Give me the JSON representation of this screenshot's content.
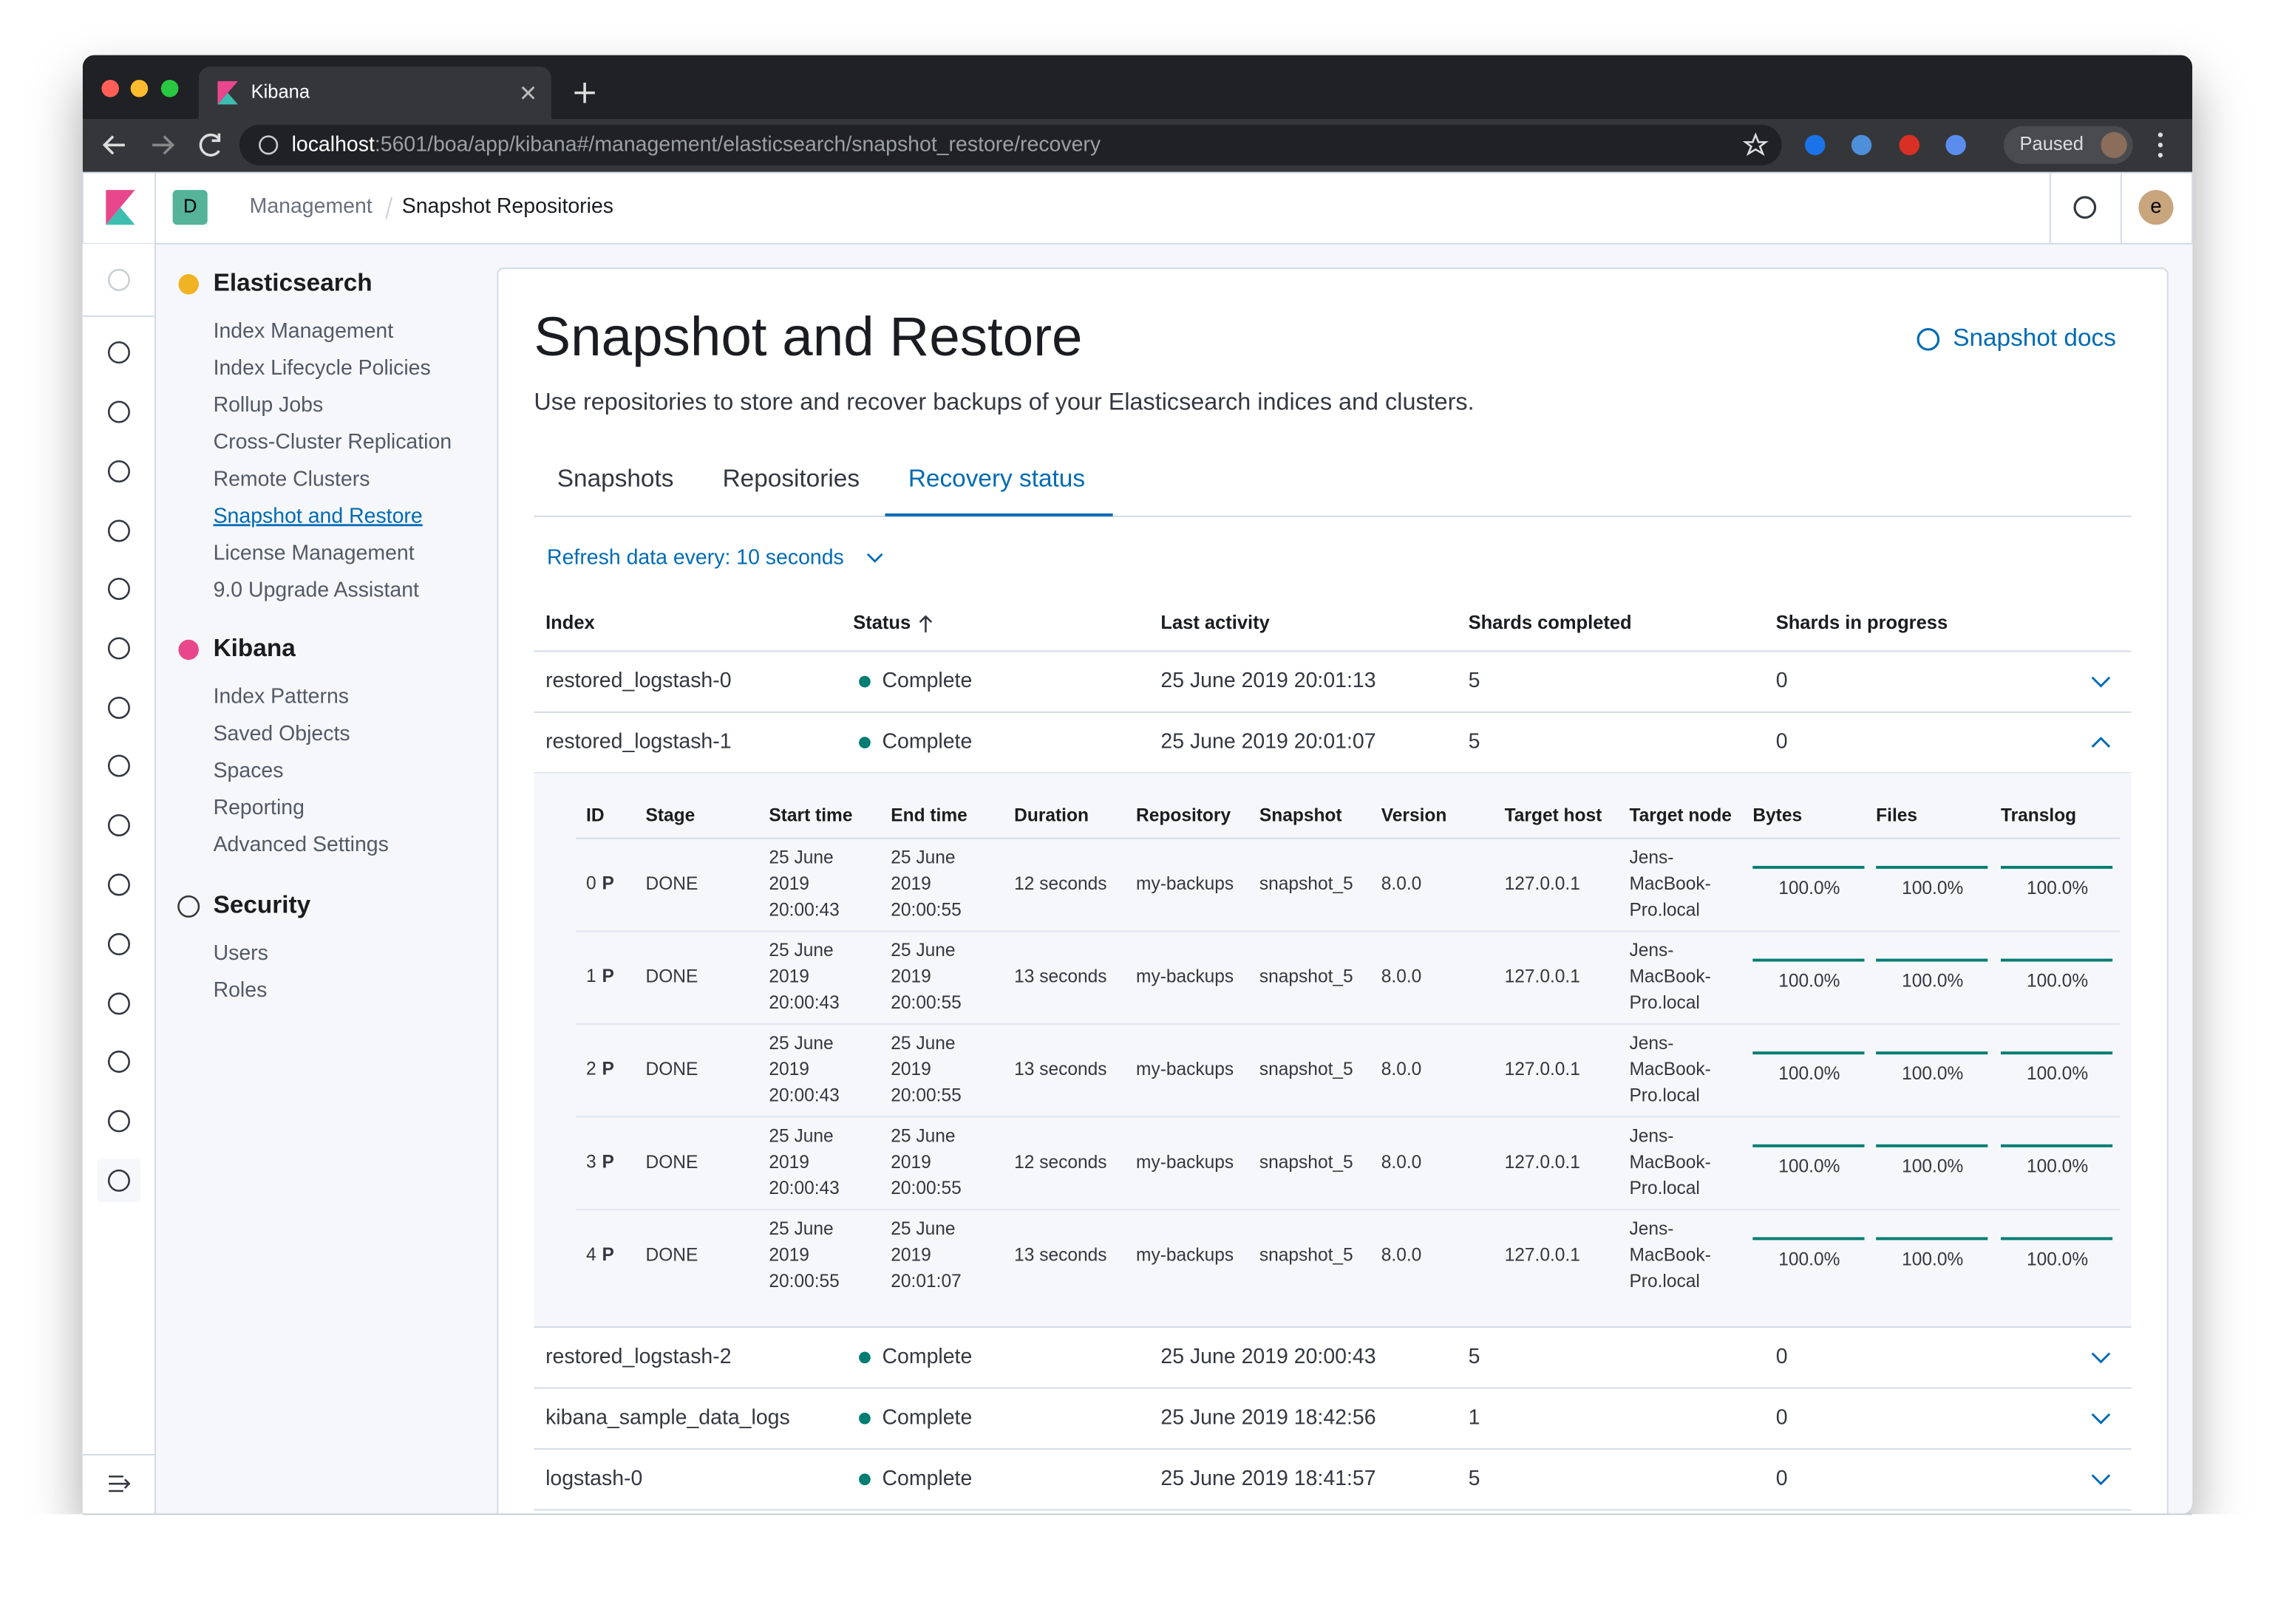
{
  "browser": {
    "tab_title": "Kibana",
    "url_host": "localhost",
    "url_path": ":5601/boa/app/kibana#/management/elasticsearch/snapshot_restore/recovery",
    "profile": "Paused"
  },
  "header": {
    "space": "D",
    "breadcrumbs": [
      "Management",
      "Snapshot Repositories"
    ],
    "avatar": "e"
  },
  "sidebar": {
    "sections": [
      {
        "title": "Elasticsearch",
        "items": [
          {
            "label": "Index Management"
          },
          {
            "label": "Index Lifecycle Policies"
          },
          {
            "label": "Rollup Jobs"
          },
          {
            "label": "Cross-Cluster Replication"
          },
          {
            "label": "Remote Clusters"
          },
          {
            "label": "Snapshot and Restore",
            "active": true
          },
          {
            "label": "License Management"
          },
          {
            "label": "9.0 Upgrade Assistant"
          }
        ]
      },
      {
        "title": "Kibana",
        "items": [
          {
            "label": "Index Patterns"
          },
          {
            "label": "Saved Objects"
          },
          {
            "label": "Spaces"
          },
          {
            "label": "Reporting"
          },
          {
            "label": "Advanced Settings"
          }
        ]
      },
      {
        "title": "Security",
        "items": [
          {
            "label": "Users"
          },
          {
            "label": "Roles"
          }
        ]
      }
    ]
  },
  "page": {
    "title": "Snapshot and Restore",
    "description": "Use repositories to store and recover backups of your Elasticsearch indices and clusters.",
    "docs_link": "Snapshot docs",
    "tabs": [
      {
        "label": "Snapshots"
      },
      {
        "label": "Repositories"
      },
      {
        "label": "Recovery status",
        "selected": true
      }
    ],
    "refresh": "Refresh data every: 10 seconds"
  },
  "recovery_table": {
    "columns": [
      "Index",
      "Status",
      "Last activity",
      "Shards completed",
      "Shards in progress"
    ],
    "detail_columns": [
      "ID",
      "Stage",
      "Start time",
      "End time",
      "Duration",
      "Repository",
      "Snapshot",
      "Version",
      "Target host",
      "Target node",
      "Bytes",
      "Files",
      "Translog"
    ],
    "rows": [
      {
        "index": "restored_logstash-0",
        "status": "Complete",
        "last_activity": "25 June 2019 20:01:13",
        "shards_completed": 5,
        "shards_in_progress": 0
      },
      {
        "index": "restored_logstash-1",
        "status": "Complete",
        "last_activity": "25 June 2019 20:01:07",
        "shards_completed": 5,
        "shards_in_progress": 0,
        "expanded": true,
        "shards": [
          {
            "id": 0,
            "primary": "P",
            "stage": "DONE",
            "start_time": [
              "25 June",
              "2019",
              "20:00:43"
            ],
            "end_time": [
              "25 June",
              "2019",
              "20:00:55"
            ],
            "duration": "12 seconds",
            "repository": "my-backups",
            "snapshot": "snapshot_5",
            "version": "8.0.0",
            "target_host": "127.0.0.1",
            "target_node": [
              "Jens-",
              "MacBook-",
              "Pro.local"
            ],
            "bytes": "100.0%",
            "files": "100.0%",
            "translog": "100.0%"
          },
          {
            "id": 1,
            "primary": "P",
            "stage": "DONE",
            "start_time": [
              "25 June",
              "2019",
              "20:00:43"
            ],
            "end_time": [
              "25 June",
              "2019",
              "20:00:55"
            ],
            "duration": "13 seconds",
            "repository": "my-backups",
            "snapshot": "snapshot_5",
            "version": "8.0.0",
            "target_host": "127.0.0.1",
            "target_node": [
              "Jens-",
              "MacBook-",
              "Pro.local"
            ],
            "bytes": "100.0%",
            "files": "100.0%",
            "translog": "100.0%"
          },
          {
            "id": 2,
            "primary": "P",
            "stage": "DONE",
            "start_time": [
              "25 June",
              "2019",
              "20:00:43"
            ],
            "end_time": [
              "25 June",
              "2019",
              "20:00:55"
            ],
            "duration": "13 seconds",
            "repository": "my-backups",
            "snapshot": "snapshot_5",
            "version": "8.0.0",
            "target_host": "127.0.0.1",
            "target_node": [
              "Jens-",
              "MacBook-",
              "Pro.local"
            ],
            "bytes": "100.0%",
            "files": "100.0%",
            "translog": "100.0%"
          },
          {
            "id": 3,
            "primary": "P",
            "stage": "DONE",
            "start_time": [
              "25 June",
              "2019",
              "20:00:43"
            ],
            "end_time": [
              "25 June",
              "2019",
              "20:00:55"
            ],
            "duration": "12 seconds",
            "repository": "my-backups",
            "snapshot": "snapshot_5",
            "version": "8.0.0",
            "target_host": "127.0.0.1",
            "target_node": [
              "Jens-",
              "MacBook-",
              "Pro.local"
            ],
            "bytes": "100.0%",
            "files": "100.0%",
            "translog": "100.0%"
          },
          {
            "id": 4,
            "primary": "P",
            "stage": "DONE",
            "start_time": [
              "25 June",
              "2019",
              "20:00:55"
            ],
            "end_time": [
              "25 June",
              "2019",
              "20:01:07"
            ],
            "duration": "13 seconds",
            "repository": "my-backups",
            "snapshot": "snapshot_5",
            "version": "8.0.0",
            "target_host": "127.0.0.1",
            "target_node": [
              "Jens-",
              "MacBook-",
              "Pro.local"
            ],
            "bytes": "100.0%",
            "files": "100.0%",
            "translog": "100.0%"
          }
        ]
      },
      {
        "index": "restored_logstash-2",
        "status": "Complete",
        "last_activity": "25 June 2019 20:00:43",
        "shards_completed": 5,
        "shards_in_progress": 0
      },
      {
        "index": "kibana_sample_data_logs",
        "status": "Complete",
        "last_activity": "25 June 2019 18:42:56",
        "shards_completed": 1,
        "shards_in_progress": 0
      },
      {
        "index": "logstash-0",
        "status": "Complete",
        "last_activity": "25 June 2019 18:41:57",
        "shards_completed": 5,
        "shards_in_progress": 0
      }
    ]
  }
}
